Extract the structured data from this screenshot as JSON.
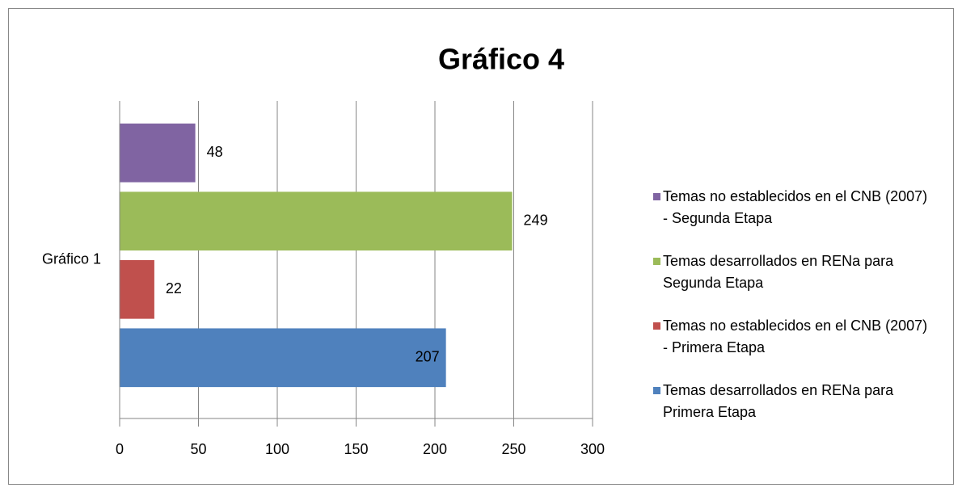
{
  "chart_data": {
    "type": "bar",
    "orientation": "horizontal",
    "title": "Gráfico 4",
    "categories": [
      "Gráfico 1"
    ],
    "series": [
      {
        "name": "Temas no establecidos en el CNB (2007) - Segunda Etapa",
        "color": "#8064a2",
        "values": [
          48
        ]
      },
      {
        "name": "Temas desarrollados en RENa para Segunda Etapa",
        "color": "#9bbb59",
        "values": [
          249
        ]
      },
      {
        "name": "Temas no establecidos en el CNB (2007) - Primera Etapa",
        "color": "#c0504d",
        "values": [
          22
        ]
      },
      {
        "name": "Temas desarrollados en RENa para Primera Etapa",
        "color": "#4f81bd",
        "values": [
          207
        ]
      }
    ],
    "label_positions": [
      "outside_end",
      "outside_end",
      "outside_end",
      "inside_end"
    ],
    "xlim": [
      0,
      300
    ],
    "xticks": [
      0,
      50,
      100,
      150,
      200,
      250,
      300
    ],
    "grid": true,
    "legend": "right"
  }
}
